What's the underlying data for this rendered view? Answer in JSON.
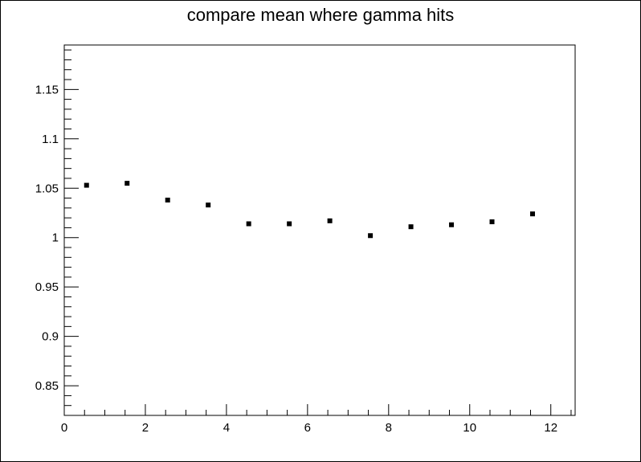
{
  "chart_data": {
    "type": "scatter",
    "title": "compare mean where gamma hits",
    "xlabel": "",
    "ylabel": "",
    "xlim": [
      0,
      12.6
    ],
    "ylim": [
      0.82,
      1.195
    ],
    "grid": false,
    "legend": "none",
    "marker_color": "#000000",
    "x_ticks": [
      {
        "value": 0,
        "label": "0"
      },
      {
        "value": 2,
        "label": "2"
      },
      {
        "value": 4,
        "label": "4"
      },
      {
        "value": 6,
        "label": "6"
      },
      {
        "value": 8,
        "label": "8"
      },
      {
        "value": 10,
        "label": "10"
      },
      {
        "value": 12,
        "label": "12"
      }
    ],
    "y_ticks": [
      {
        "value": 0.85,
        "label": "0.85"
      },
      {
        "value": 0.9,
        "label": "0.9"
      },
      {
        "value": 0.95,
        "label": "0.95"
      },
      {
        "value": 1.0,
        "label": "1"
      },
      {
        "value": 1.05,
        "label": "1.05"
      },
      {
        "value": 1.1,
        "label": "1.1"
      },
      {
        "value": 1.15,
        "label": "1.15"
      }
    ],
    "points": [
      {
        "x": 0.55,
        "y": 1.053
      },
      {
        "x": 1.55,
        "y": 1.055
      },
      {
        "x": 2.55,
        "y": 1.038
      },
      {
        "x": 3.55,
        "y": 1.033
      },
      {
        "x": 4.55,
        "y": 1.014
      },
      {
        "x": 5.55,
        "y": 1.014
      },
      {
        "x": 6.55,
        "y": 1.017
      },
      {
        "x": 7.55,
        "y": 1.002
      },
      {
        "x": 8.55,
        "y": 1.011
      },
      {
        "x": 9.55,
        "y": 1.013
      },
      {
        "x": 10.55,
        "y": 1.016
      },
      {
        "x": 11.55,
        "y": 1.024
      }
    ]
  }
}
